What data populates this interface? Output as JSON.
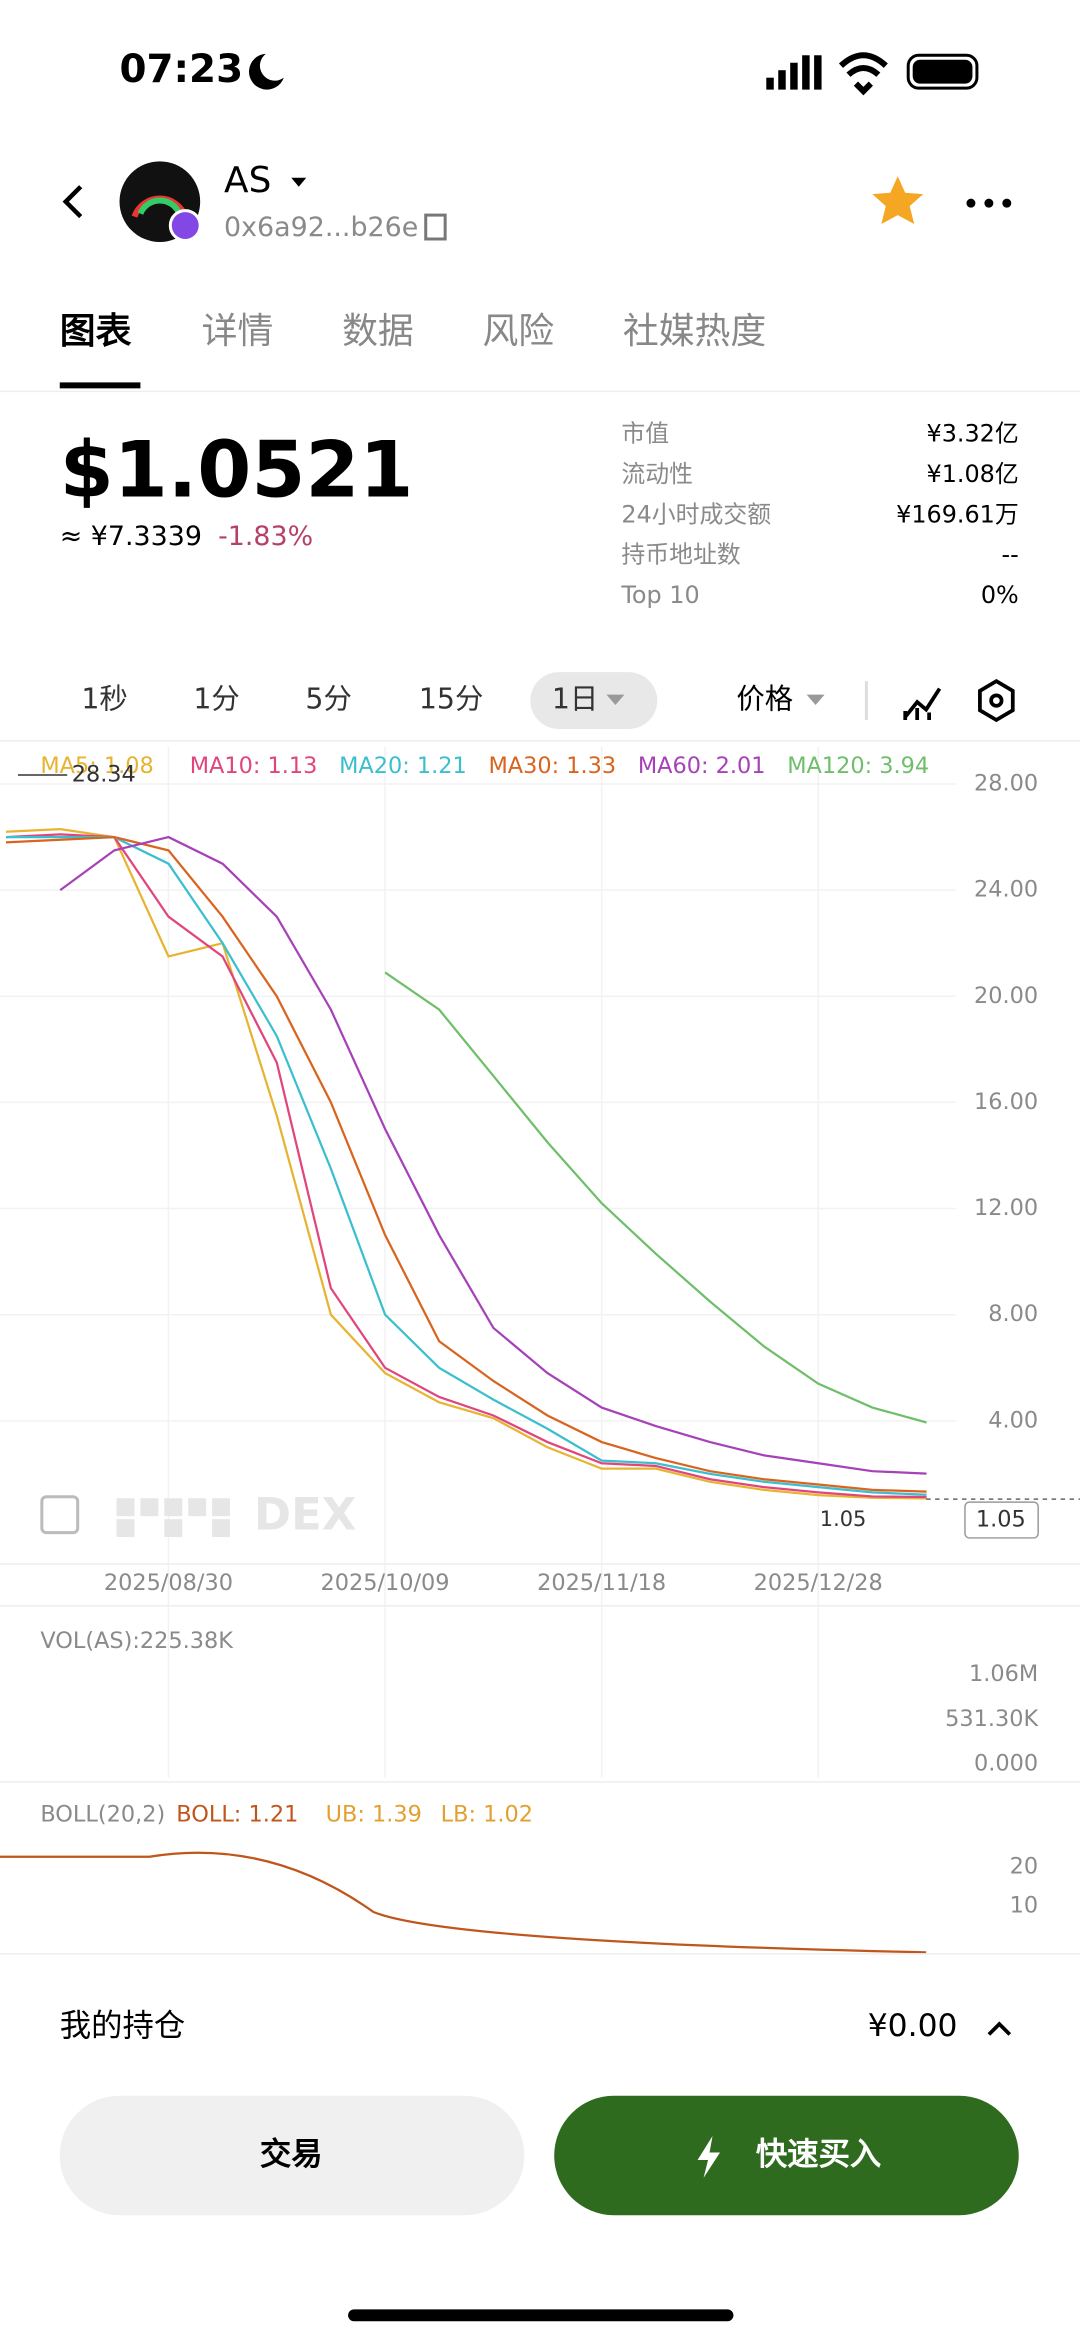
{
  "status_bar": {
    "time": "07:23"
  },
  "header": {
    "symbol": "AS",
    "address": "0x6a92...b26e"
  },
  "tabs": [
    "图表",
    "详情",
    "数据",
    "风险",
    "社媒热度"
  ],
  "price": {
    "usd": "$1.0521",
    "cny": "≈ ¥7.3339",
    "change": "-1.83%"
  },
  "stats": [
    {
      "label": "市值",
      "value": "¥3.32亿"
    },
    {
      "label": "流动性",
      "value": "¥1.08亿"
    },
    {
      "label": "24小时成交额",
      "value": "¥169.61万"
    },
    {
      "label": "持币地址数",
      "value": "--"
    },
    {
      "label": "Top 10",
      "value": "0%"
    }
  ],
  "timeframes": [
    "1秒",
    "1分",
    "5分",
    "15分",
    "1日"
  ],
  "price_selector": "价格",
  "chart_data": {
    "type": "line",
    "categories": [
      null,
      null,
      null,
      "2025/08/30",
      null,
      null,
      null,
      "2025/10/09",
      null,
      null,
      null,
      "2025/11/18",
      null,
      null,
      null,
      "2025/12/28",
      null,
      null
    ],
    "series": [
      {
        "name": "MA5: 1.08",
        "color": "#e7b432",
        "values": [
          26.2,
          26.3,
          26.0,
          21.5,
          22.0,
          15.5,
          8.0,
          5.8,
          4.7,
          4.1,
          3.0,
          2.2,
          2.2,
          1.7,
          1.4,
          1.2,
          1.1,
          1.08
        ]
      },
      {
        "name": "MA10: 1.13",
        "color": "#e0457e",
        "values": [
          26.0,
          26.1,
          26.0,
          23.0,
          21.5,
          17.5,
          9.0,
          6.0,
          4.9,
          4.2,
          3.2,
          2.4,
          2.3,
          1.8,
          1.5,
          1.3,
          1.15,
          1.13
        ]
      },
      {
        "name": "MA20: 1.21",
        "color": "#3bbfcf",
        "values": [
          26.0,
          26.0,
          26.0,
          25.0,
          22.0,
          18.5,
          13.5,
          8.0,
          6.0,
          4.8,
          3.7,
          2.5,
          2.4,
          2.0,
          1.7,
          1.5,
          1.3,
          1.21
        ]
      },
      {
        "name": "MA30: 1.33",
        "color": "#d9641e",
        "values": [
          25.8,
          25.9,
          26.0,
          25.5,
          23.0,
          20.0,
          16.0,
          11.0,
          7.0,
          5.5,
          4.2,
          3.2,
          2.6,
          2.1,
          1.8,
          1.6,
          1.4,
          1.33
        ]
      },
      {
        "name": "MA60: 2.01",
        "color": "#a642b8",
        "values": [
          null,
          24.0,
          25.5,
          26.0,
          25.0,
          23.0,
          19.5,
          15.0,
          11.0,
          7.5,
          5.8,
          4.5,
          3.8,
          3.2,
          2.7,
          2.4,
          2.1,
          2.01
        ]
      },
      {
        "name": "MA120: 3.94",
        "color": "#6fbf6a",
        "values": [
          null,
          null,
          null,
          null,
          null,
          null,
          null,
          20.9,
          19.5,
          17.0,
          14.5,
          12.2,
          10.3,
          8.5,
          6.8,
          5.4,
          4.5,
          3.94
        ]
      }
    ],
    "ylim": [
      -1,
      29.4
    ],
    "yticks": [
      {
        "value": 28,
        "label": "28.00"
      },
      {
        "value": 24,
        "label": "24.00"
      },
      {
        "value": 20,
        "label": "20.00"
      },
      {
        "value": 16,
        "label": "16.00"
      },
      {
        "value": 12,
        "label": "12.00"
      },
      {
        "value": 8,
        "label": "8.00"
      },
      {
        "value": 4,
        "label": "4.00"
      }
    ],
    "grid": true,
    "peak": 28.34,
    "last_price": 1.05,
    "watermark": "DEX"
  },
  "volume": {
    "label": "VOL(AS):225.38K",
    "yticks": [
      "1.06M",
      "531.30K",
      "0.000"
    ]
  },
  "boll": {
    "label": "BOLL(20,2)",
    "boll": "BOLL: 1.21",
    "ub": "UB: 1.39",
    "lb": "LB: 1.02",
    "yticks": [
      20,
      10
    ]
  },
  "holdings": {
    "label": "我的持仓",
    "value": "¥0.00"
  },
  "buttons": {
    "trade": "交易",
    "quick_buy": "快速买入"
  }
}
